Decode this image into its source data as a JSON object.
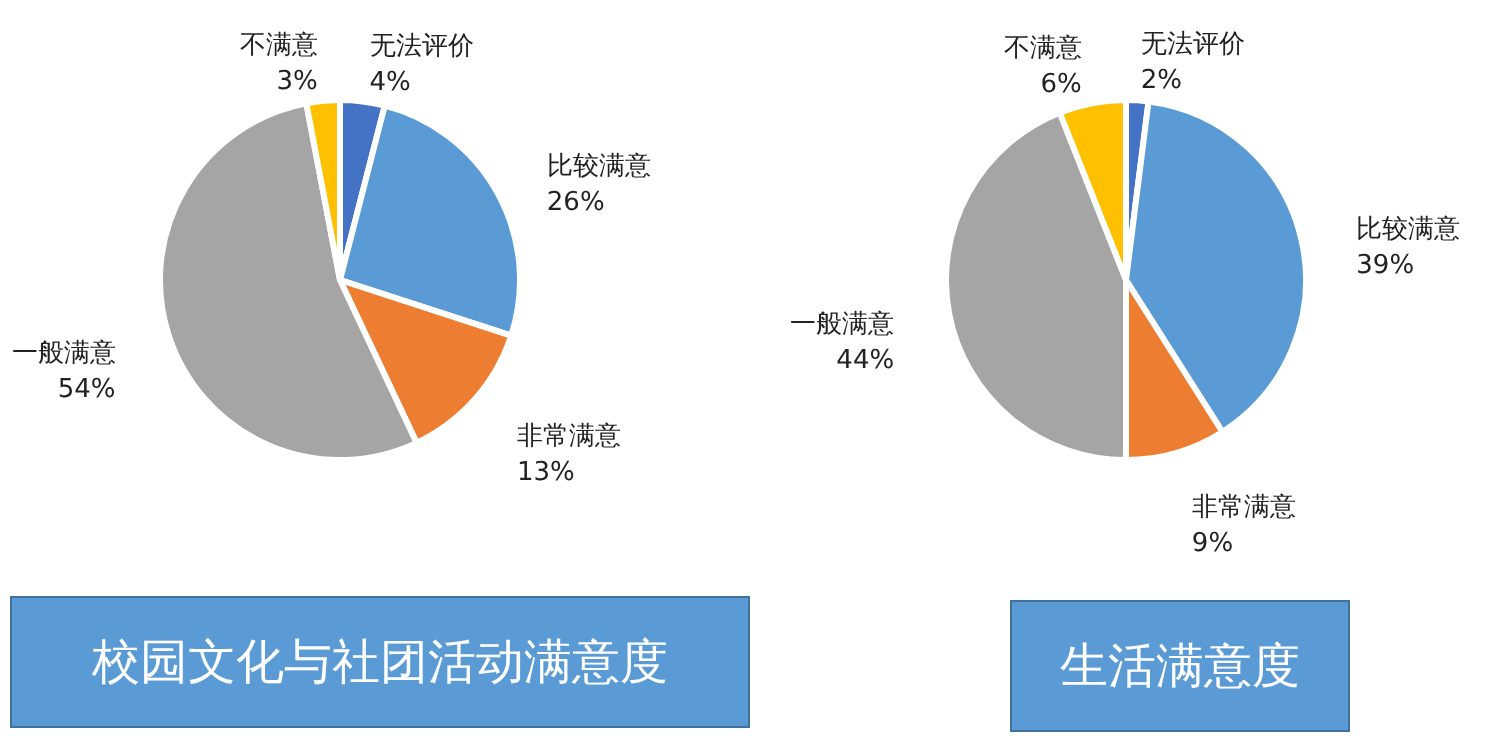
{
  "chart_data": [
    {
      "type": "pie",
      "title": "校园文化与社团活动满意度",
      "categories": [
        "无法评价",
        "比较满意",
        "非常满意",
        "一般满意",
        "不满意"
      ],
      "values": [
        4,
        26,
        13,
        54,
        3
      ],
      "colors": [
        "#4472c4",
        "#5b9bd5",
        "#ed7d31",
        "#a5a5a5",
        "#ffc000"
      ],
      "value_labels": [
        "4%",
        "26%",
        "13%",
        "54%",
        "3%"
      ],
      "legend": false
    },
    {
      "type": "pie",
      "title": "生活满意度",
      "categories": [
        "无法评价",
        "比较满意",
        "非常满意",
        "一般满意",
        "不满意"
      ],
      "values": [
        2,
        39,
        9,
        44,
        6
      ],
      "colors": [
        "#4472c4",
        "#5b9bd5",
        "#ed7d31",
        "#a5a5a5",
        "#ffc000"
      ],
      "value_labels": [
        "2%",
        "39%",
        "9%",
        "44%",
        "6%"
      ],
      "legend": false
    }
  ]
}
